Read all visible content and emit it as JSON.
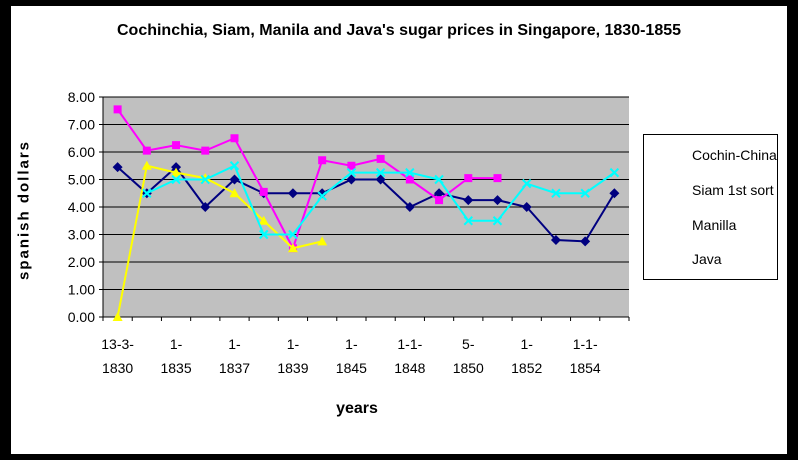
{
  "chart_data": {
    "type": "line",
    "title": "Cochinchia, Siam, Manila and Java's sugar prices in Singapore, 1830-1855",
    "xlabel": "years",
    "ylabel": "spanish dollars",
    "ylim": [
      0,
      8
    ],
    "yticks": [
      "0.00",
      "1.00",
      "2.00",
      "3.00",
      "4.00",
      "5.00",
      "6.00",
      "7.00",
      "8.00"
    ],
    "xtick_labels": [
      [
        "13-3-",
        "1830"
      ],
      [
        "1-",
        "1835"
      ],
      [
        "1-",
        "1837"
      ],
      [
        "1-",
        "1839"
      ],
      [
        "1-",
        "1845"
      ],
      [
        "1-1-",
        "1848"
      ],
      [
        "5-",
        "1850"
      ],
      [
        "1-",
        "1852"
      ],
      [
        "1-1-",
        "1854"
      ]
    ],
    "point_count": 18,
    "grid": "horizontal",
    "legend_position": "right",
    "series": [
      {
        "name": "Cochin-China",
        "color": "#000080",
        "marker": "diamond",
        "values": [
          5.45,
          4.5,
          5.45,
          4.0,
          5.0,
          4.5,
          4.5,
          4.5,
          5.0,
          5.0,
          4.0,
          4.5,
          4.25,
          4.25,
          4.0,
          2.8,
          2.75,
          4.5
        ]
      },
      {
        "name": "Siam 1st sort",
        "color": "#ff00ff",
        "marker": "square",
        "values": [
          7.55,
          6.05,
          6.25,
          6.05,
          6.5,
          4.55,
          2.5,
          5.7,
          5.5,
          5.75,
          5.0,
          4.25,
          5.05,
          5.05,
          null,
          null,
          null,
          null
        ]
      },
      {
        "name": "Manilla",
        "color": "#ffff00",
        "marker": "triangle",
        "values": [
          0.0,
          5.5,
          5.25,
          5.05,
          4.5,
          3.5,
          2.5,
          2.75,
          null,
          null,
          null,
          null,
          null,
          null,
          null,
          null,
          null,
          null
        ]
      },
      {
        "name": "Java",
        "color": "#00ffff",
        "marker": "x",
        "values": [
          null,
          4.5,
          5.0,
          5.0,
          5.5,
          3.0,
          3.0,
          4.4,
          5.25,
          5.25,
          5.25,
          5.0,
          3.5,
          3.5,
          4.85,
          4.5,
          4.5,
          5.25
        ]
      }
    ]
  }
}
